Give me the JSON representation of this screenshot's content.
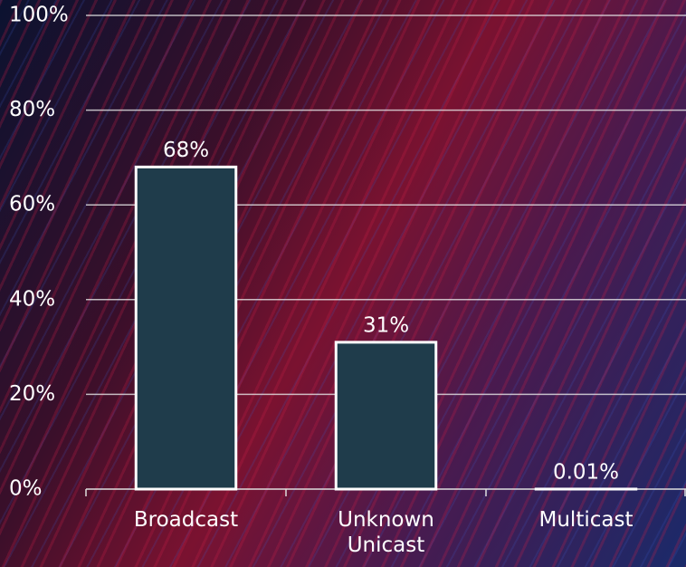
{
  "chart_data": {
    "type": "bar",
    "categories": [
      "Broadcast",
      "Unknown Unicast",
      "Multicast"
    ],
    "values": [
      68,
      31,
      0.01
    ],
    "value_labels": [
      "68%",
      "31%",
      "0.01%"
    ],
    "color": "#1f3c4b",
    "ylim": [
      0,
      100
    ],
    "yticks": [
      {
        "value": 0,
        "label": "0%"
      },
      {
        "value": 20,
        "label": "20%"
      },
      {
        "value": 40,
        "label": "40%"
      },
      {
        "value": 60,
        "label": "60%"
      },
      {
        "value": 80,
        "label": "80%"
      },
      {
        "value": 100,
        "label": "100%"
      }
    ],
    "grid": true
  }
}
